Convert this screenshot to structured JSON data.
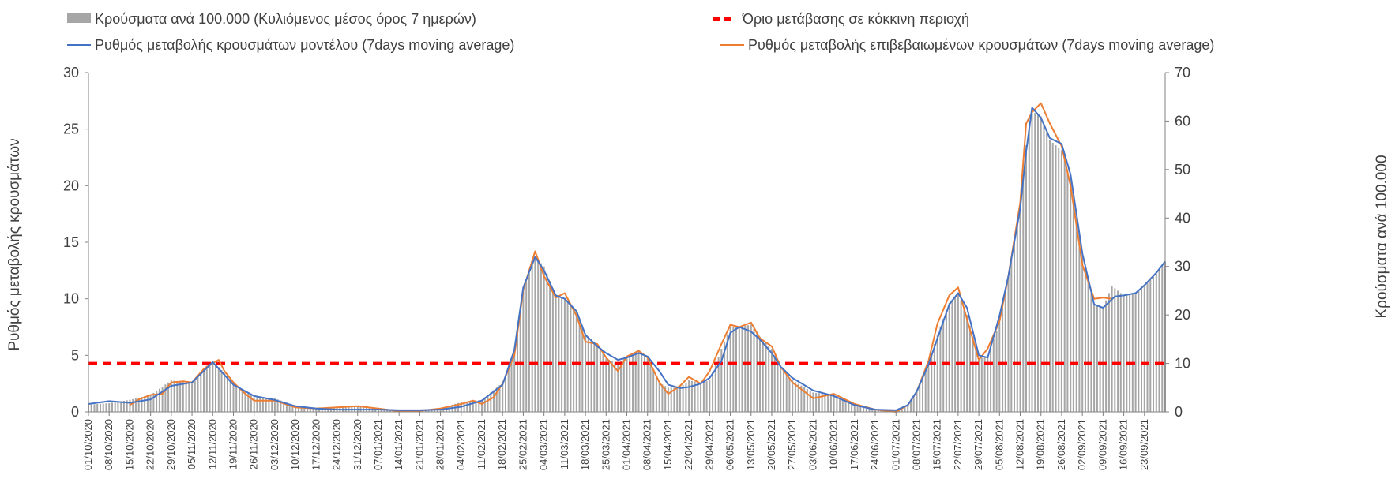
{
  "chart_data": {
    "type": "bar+line",
    "legend": {
      "bars_label": "Κρούσματα ανά 100.000 (Κυλιόμενος μέσος όρος 7 ημερών)",
      "threshold_label": "Όριο μετάβασης σε κόκκινη περιοχή",
      "model_label": "Ρυθμός μεταβολής κρουσμάτων μοντέλου (7days moving average)",
      "confirmed_label": "Ρυθμός μεταβολής επιβεβαιωμένων κρουσμάτων (7days moving average)"
    },
    "ylabel_left": "Ρυθμός μεταβολής κρουσμάτων",
    "ylabel_right": "Κρούσματα ανά 100.000",
    "ylim_left": [
      0,
      30
    ],
    "ylim_right": [
      0,
      70
    ],
    "yticks_left": [
      "0",
      "5",
      "10",
      "15",
      "20",
      "25",
      "30"
    ],
    "yticks_right": [
      "0",
      "10",
      "20",
      "30",
      "40",
      "50",
      "60",
      "70"
    ],
    "x_start": "01/10/2020",
    "x_end": "30/09/2021",
    "xtick_labels": [
      "01/10/2020",
      "08/10/2020",
      "15/10/2020",
      "22/10/2020",
      "29/10/2020",
      "05/11/2020",
      "12/11/2020",
      "19/11/2020",
      "26/11/2020",
      "03/12/2020",
      "10/12/2020",
      "17/12/2020",
      "24/12/2020",
      "31/12/2020",
      "07/01/2021",
      "14/01/2021",
      "21/01/2021",
      "28/01/2021",
      "04/02/2021",
      "11/02/2021",
      "18/02/2021",
      "25/02/2021",
      "04/03/2021",
      "11/03/2021",
      "18/03/2021",
      "25/03/2021",
      "01/04/2021",
      "08/04/2021",
      "15/04/2021",
      "22/04/2021",
      "29/04/2021",
      "06/05/2021",
      "13/05/2021",
      "20/05/2021",
      "27/05/2021",
      "03/06/2021",
      "10/06/2021",
      "17/06/2021",
      "24/06/2021",
      "01/07/2021",
      "08/07/2021",
      "15/07/2021",
      "22/07/2021",
      "29/07/2021",
      "05/08/2021",
      "12/08/2021",
      "19/08/2021",
      "26/08/2021",
      "02/09/2021",
      "09/09/2021",
      "16/09/2021",
      "23/09/2021"
    ],
    "threshold_value_left": 4.3,
    "model_series": [
      [
        "01/10/2020",
        0.7
      ],
      [
        "08/10/2020",
        0.95
      ],
      [
        "15/10/2020",
        0.8
      ],
      [
        "22/10/2020",
        1.1
      ],
      [
        "29/10/2020",
        2.3
      ],
      [
        "05/11/2020",
        2.6
      ],
      [
        "12/11/2020",
        4.4
      ],
      [
        "19/11/2020",
        2.4
      ],
      [
        "26/11/2020",
        1.4
      ],
      [
        "03/12/2020",
        1.05
      ],
      [
        "10/12/2020",
        0.5
      ],
      [
        "17/12/2020",
        0.3
      ],
      [
        "24/12/2020",
        0.2
      ],
      [
        "31/12/2020",
        0.2
      ],
      [
        "07/01/2021",
        0.2
      ],
      [
        "14/01/2021",
        0.15
      ],
      [
        "21/01/2021",
        0.15
      ],
      [
        "28/01/2021",
        0.2
      ],
      [
        "04/02/2021",
        0.45
      ],
      [
        "11/02/2021",
        1.0
      ],
      [
        "18/02/2021",
        2.4
      ],
      [
        "22/02/2021",
        5.5
      ],
      [
        "25/02/2021",
        11.0
      ],
      [
        "01/03/2021",
        13.7
      ],
      [
        "04/03/2021",
        12.5
      ],
      [
        "08/03/2021",
        10.3
      ],
      [
        "11/03/2021",
        10.0
      ],
      [
        "15/03/2021",
        8.9
      ],
      [
        "18/03/2021",
        6.8
      ],
      [
        "22/03/2021",
        5.8
      ],
      [
        "25/03/2021",
        5.2
      ],
      [
        "29/03/2021",
        4.6
      ],
      [
        "01/04/2021",
        4.8
      ],
      [
        "05/04/2021",
        5.2
      ],
      [
        "08/04/2021",
        4.9
      ],
      [
        "12/04/2021",
        3.6
      ],
      [
        "15/04/2021",
        2.4
      ],
      [
        "19/04/2021",
        2.1
      ],
      [
        "22/04/2021",
        2.2
      ],
      [
        "26/04/2021",
        2.5
      ],
      [
        "29/04/2021",
        3.0
      ],
      [
        "03/05/2021",
        4.5
      ],
      [
        "06/05/2021",
        7.0
      ],
      [
        "09/05/2021",
        7.5
      ],
      [
        "13/05/2021",
        7.1
      ],
      [
        "16/05/2021",
        6.4
      ],
      [
        "20/05/2021",
        5.2
      ],
      [
        "23/05/2021",
        4.0
      ],
      [
        "27/05/2021",
        3.0
      ],
      [
        "03/06/2021",
        1.9
      ],
      [
        "10/06/2021",
        1.4
      ],
      [
        "17/06/2021",
        0.6
      ],
      [
        "24/06/2021",
        0.2
      ],
      [
        "01/07/2021",
        0.15
      ],
      [
        "05/07/2021",
        0.6
      ],
      [
        "08/07/2021",
        1.8
      ],
      [
        "12/07/2021",
        4.2
      ],
      [
        "15/07/2021",
        6.5
      ],
      [
        "19/07/2021",
        9.5
      ],
      [
        "22/07/2021",
        10.5
      ],
      [
        "25/07/2021",
        9.2
      ],
      [
        "29/07/2021",
        5.0
      ],
      [
        "01/08/2021",
        4.8
      ],
      [
        "05/08/2021",
        8.5
      ],
      [
        "08/08/2021",
        12.0
      ],
      [
        "12/08/2021",
        18.0
      ],
      [
        "14/08/2021",
        23.0
      ],
      [
        "16/08/2021",
        26.9
      ],
      [
        "19/08/2021",
        26.0
      ],
      [
        "22/08/2021",
        24.2
      ],
      [
        "26/08/2021",
        23.7
      ],
      [
        "29/08/2021",
        21.0
      ],
      [
        "02/09/2021",
        14.0
      ],
      [
        "06/09/2021",
        9.5
      ],
      [
        "09/09/2021",
        9.2
      ],
      [
        "13/09/2021",
        10.2
      ],
      [
        "16/09/2021",
        10.3
      ],
      [
        "20/09/2021",
        10.5
      ],
      [
        "23/09/2021",
        11.2
      ],
      [
        "27/09/2021",
        12.3
      ],
      [
        "30/09/2021",
        13.3
      ]
    ],
    "confirmed_series": [
      [
        "15/10/2020",
        0.6
      ],
      [
        "18/10/2020",
        1.1
      ],
      [
        "22/10/2020",
        1.5
      ],
      [
        "26/10/2020",
        1.6
      ],
      [
        "29/10/2020",
        2.6
      ],
      [
        "02/11/2020",
        2.7
      ],
      [
        "05/11/2020",
        2.6
      ],
      [
        "09/11/2020",
        3.8
      ],
      [
        "12/11/2020",
        4.3
      ],
      [
        "14/11/2020",
        4.6
      ],
      [
        "16/11/2020",
        3.6
      ],
      [
        "19/11/2020",
        2.6
      ],
      [
        "23/11/2020",
        1.6
      ],
      [
        "26/11/2020",
        1.0
      ],
      [
        "03/12/2020",
        1.0
      ],
      [
        "10/12/2020",
        0.4
      ],
      [
        "17/12/2020",
        0.3
      ],
      [
        "24/12/2020",
        0.4
      ],
      [
        "31/12/2020",
        0.5
      ],
      [
        "07/01/2021",
        0.3
      ],
      [
        "14/01/2021",
        0.05
      ],
      [
        "21/01/2021",
        0.1
      ],
      [
        "28/01/2021",
        0.3
      ],
      [
        "04/02/2021",
        0.7
      ],
      [
        "08/02/2021",
        1.0
      ],
      [
        "11/02/2021",
        0.7
      ],
      [
        "15/02/2021",
        1.3
      ],
      [
        "18/02/2021",
        2.5
      ],
      [
        "22/02/2021",
        5.0
      ],
      [
        "25/02/2021",
        10.8
      ],
      [
        "01/03/2021",
        14.2
      ],
      [
        "04/03/2021",
        12.0
      ],
      [
        "08/03/2021",
        10.1
      ],
      [
        "11/03/2021",
        10.5
      ],
      [
        "15/03/2021",
        8.5
      ],
      [
        "18/03/2021",
        6.2
      ],
      [
        "22/03/2021",
        6.0
      ],
      [
        "25/03/2021",
        4.8
      ],
      [
        "29/03/2021",
        3.6
      ],
      [
        "01/04/2021",
        4.9
      ],
      [
        "05/04/2021",
        5.4
      ],
      [
        "08/04/2021",
        4.8
      ],
      [
        "12/04/2021",
        2.6
      ],
      [
        "15/04/2021",
        1.6
      ],
      [
        "19/04/2021",
        2.3
      ],
      [
        "22/04/2021",
        3.1
      ],
      [
        "26/04/2021",
        2.5
      ],
      [
        "29/04/2021",
        3.6
      ],
      [
        "03/05/2021",
        6.0
      ],
      [
        "06/05/2021",
        7.7
      ],
      [
        "09/05/2021",
        7.5
      ],
      [
        "13/05/2021",
        7.9
      ],
      [
        "16/05/2021",
        6.5
      ],
      [
        "20/05/2021",
        5.8
      ],
      [
        "23/05/2021",
        4.0
      ],
      [
        "27/05/2021",
        2.6
      ],
      [
        "03/06/2021",
        1.2
      ],
      [
        "10/06/2021",
        1.6
      ],
      [
        "17/06/2021",
        0.7
      ],
      [
        "24/06/2021",
        0.2
      ],
      [
        "01/07/2021",
        0.0
      ],
      [
        "05/07/2021",
        0.6
      ],
      [
        "08/07/2021",
        1.8
      ],
      [
        "12/07/2021",
        4.5
      ],
      [
        "15/07/2021",
        7.8
      ],
      [
        "19/07/2021",
        10.3
      ],
      [
        "22/07/2021",
        11.0
      ],
      [
        "25/07/2021",
        8.2
      ],
      [
        "29/07/2021",
        4.6
      ],
      [
        "01/08/2021",
        5.6
      ],
      [
        "05/08/2021",
        8.0
      ],
      [
        "08/08/2021",
        12.0
      ],
      [
        "12/08/2021",
        18.5
      ],
      [
        "14/08/2021",
        25.5
      ],
      [
        "16/08/2021",
        26.5
      ],
      [
        "19/08/2021",
        27.3
      ],
      [
        "22/08/2021",
        25.5
      ],
      [
        "26/08/2021",
        23.5
      ],
      [
        "29/08/2021",
        20.0
      ],
      [
        "02/09/2021",
        13.0
      ],
      [
        "06/09/2021",
        10.0
      ],
      [
        "09/09/2021",
        10.1
      ],
      [
        "12/09/2021",
        10.0
      ]
    ],
    "bars_series": [
      [
        "01/10/2020",
        1.5
      ],
      [
        "08/10/2020",
        1.8
      ],
      [
        "15/10/2020",
        2.5
      ],
      [
        "22/10/2020",
        3.5
      ],
      [
        "29/10/2020",
        6.5
      ],
      [
        "05/11/2020",
        6.0
      ],
      [
        "09/11/2020",
        9.0
      ],
      [
        "12/11/2020",
        10.5
      ],
      [
        "16/11/2020",
        8.0
      ],
      [
        "19/11/2020",
        6.0
      ],
      [
        "26/11/2020",
        3.0
      ],
      [
        "03/12/2020",
        2.8
      ],
      [
        "10/12/2020",
        1.2
      ],
      [
        "17/12/2020",
        0.9
      ],
      [
        "24/12/2020",
        1.0
      ],
      [
        "31/12/2020",
        1.2
      ],
      [
        "07/01/2021",
        0.8
      ],
      [
        "14/01/2021",
        0.4
      ],
      [
        "21/01/2021",
        0.4
      ],
      [
        "28/01/2021",
        0.8
      ],
      [
        "04/02/2021",
        2.0
      ],
      [
        "11/02/2021",
        2.5
      ],
      [
        "18/02/2021",
        6.0
      ],
      [
        "22/02/2021",
        12.0
      ],
      [
        "25/02/2021",
        25.0
      ],
      [
        "01/03/2021",
        32.0
      ],
      [
        "04/03/2021",
        30.0
      ],
      [
        "08/03/2021",
        24.0
      ],
      [
        "11/03/2021",
        23.5
      ],
      [
        "15/03/2021",
        21.0
      ],
      [
        "18/03/2021",
        16.0
      ],
      [
        "22/03/2021",
        14.0
      ],
      [
        "25/03/2021",
        11.0
      ],
      [
        "29/03/2021",
        10.0
      ],
      [
        "01/04/2021",
        11.5
      ],
      [
        "05/04/2021",
        12.5
      ],
      [
        "08/04/2021",
        11.0
      ],
      [
        "12/04/2021",
        6.0
      ],
      [
        "15/04/2021",
        5.0
      ],
      [
        "19/04/2021",
        5.0
      ],
      [
        "22/04/2021",
        6.5
      ],
      [
        "26/04/2021",
        6.0
      ],
      [
        "29/04/2021",
        6.5
      ],
      [
        "03/05/2021",
        13.0
      ],
      [
        "06/05/2021",
        17.5
      ],
      [
        "09/05/2021",
        17.5
      ],
      [
        "13/05/2021",
        18.0
      ],
      [
        "16/05/2021",
        15.5
      ],
      [
        "20/05/2021",
        13.0
      ],
      [
        "23/05/2021",
        9.0
      ],
      [
        "27/05/2021",
        6.5
      ],
      [
        "03/06/2021",
        4.0
      ],
      [
        "10/06/2021",
        3.5
      ],
      [
        "17/06/2021",
        1.5
      ],
      [
        "24/06/2021",
        0.6
      ],
      [
        "01/07/2021",
        0.4
      ],
      [
        "05/07/2021",
        1.5
      ],
      [
        "08/07/2021",
        4.5
      ],
      [
        "12/07/2021",
        10.0
      ],
      [
        "15/07/2021",
        16.0
      ],
      [
        "19/07/2021",
        22.5
      ],
      [
        "22/07/2021",
        24.5
      ],
      [
        "25/07/2021",
        20.0
      ],
      [
        "29/07/2021",
        11.0
      ],
      [
        "01/08/2021",
        11.5
      ],
      [
        "05/08/2021",
        18.5
      ],
      [
        "08/08/2021",
        28.0
      ],
      [
        "12/08/2021",
        42.0
      ],
      [
        "14/08/2021",
        55.0
      ],
      [
        "16/08/2021",
        62.0
      ],
      [
        "19/08/2021",
        61.0
      ],
      [
        "22/08/2021",
        56.0
      ],
      [
        "26/08/2021",
        54.0
      ],
      [
        "29/08/2021",
        48.0
      ],
      [
        "02/09/2021",
        32.0
      ],
      [
        "06/09/2021",
        22.0
      ],
      [
        "09/09/2021",
        21.5
      ],
      [
        "12/09/2021",
        26.0
      ],
      [
        "16/09/2021",
        24.0
      ],
      [
        "20/09/2021",
        24.5
      ],
      [
        "23/09/2021",
        26.0
      ],
      [
        "27/09/2021",
        28.5
      ],
      [
        "30/09/2021",
        31.0
      ]
    ]
  },
  "colors": {
    "bars": "#a6a6a6",
    "model": "#4472c4",
    "confirmed": "#ed7d31",
    "threshold": "#ff0000",
    "axis": "#808080"
  }
}
